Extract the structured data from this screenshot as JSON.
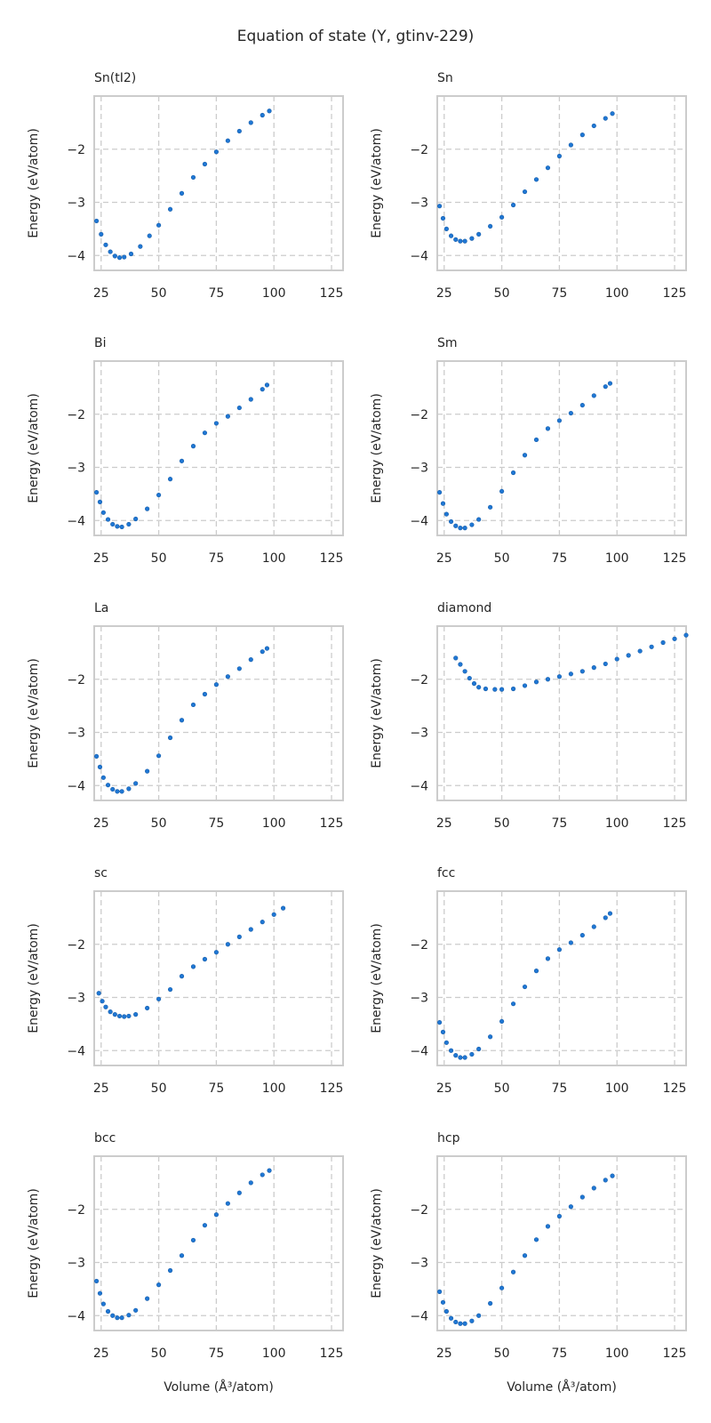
{
  "figure": {
    "title": "Equation of state (Y, gtinv-229)",
    "xlabel": "Volume (Å³/atom)",
    "ylabel": "Energy (eV/atom)"
  },
  "chart_data": [
    {
      "type": "scatter",
      "title": "Sn(tI2)",
      "xlim": [
        22,
        130
      ],
      "ylim": [
        -4.28,
        -1.0
      ],
      "xticks": [
        25,
        50,
        75,
        100,
        125
      ],
      "yticks": [
        -4,
        -3,
        -2
      ],
      "xlabel": "",
      "ylabel": "Energy (eV/atom)",
      "points": [
        [
          23,
          -3.35
        ],
        [
          25,
          -3.6
        ],
        [
          27,
          -3.8
        ],
        [
          29,
          -3.93
        ],
        [
          31,
          -4.01
        ],
        [
          33,
          -4.04
        ],
        [
          35,
          -4.03
        ],
        [
          38,
          -3.97
        ],
        [
          42,
          -3.83
        ],
        [
          46,
          -3.63
        ],
        [
          50,
          -3.43
        ],
        [
          55,
          -3.13
        ],
        [
          60,
          -2.83
        ],
        [
          65,
          -2.53
        ],
        [
          70,
          -2.28
        ],
        [
          75,
          -2.05
        ],
        [
          80,
          -1.84
        ],
        [
          85,
          -1.66
        ],
        [
          90,
          -1.5
        ],
        [
          95,
          -1.36
        ],
        [
          98,
          -1.28
        ]
      ]
    },
    {
      "type": "scatter",
      "title": "Sn",
      "xlim": [
        22,
        130
      ],
      "ylim": [
        -4.28,
        -1.0
      ],
      "xticks": [
        25,
        50,
        75,
        100,
        125
      ],
      "yticks": [
        -4,
        -3,
        -2
      ],
      "xlabel": "",
      "ylabel": "Energy (eV/atom)",
      "points": [
        [
          23,
          -3.07
        ],
        [
          24.5,
          -3.3
        ],
        [
          26,
          -3.5
        ],
        [
          28,
          -3.63
        ],
        [
          30,
          -3.7
        ],
        [
          32,
          -3.73
        ],
        [
          34,
          -3.73
        ],
        [
          37,
          -3.68
        ],
        [
          40,
          -3.6
        ],
        [
          45,
          -3.45
        ],
        [
          50,
          -3.28
        ],
        [
          55,
          -3.05
        ],
        [
          60,
          -2.8
        ],
        [
          65,
          -2.57
        ],
        [
          70,
          -2.35
        ],
        [
          75,
          -2.13
        ],
        [
          80,
          -1.92
        ],
        [
          85,
          -1.73
        ],
        [
          90,
          -1.56
        ],
        [
          95,
          -1.42
        ],
        [
          98,
          -1.33
        ]
      ]
    },
    {
      "type": "scatter",
      "title": "Bi",
      "xlim": [
        22,
        130
      ],
      "ylim": [
        -4.28,
        -1.0
      ],
      "xticks": [
        25,
        50,
        75,
        100,
        125
      ],
      "yticks": [
        -4,
        -3,
        -2
      ],
      "xlabel": "",
      "ylabel": "Energy (eV/atom)",
      "points": [
        [
          23,
          -3.47
        ],
        [
          24.5,
          -3.65
        ],
        [
          26,
          -3.85
        ],
        [
          28,
          -3.98
        ],
        [
          30,
          -4.07
        ],
        [
          32,
          -4.11
        ],
        [
          34,
          -4.12
        ],
        [
          37,
          -4.07
        ],
        [
          40,
          -3.97
        ],
        [
          45,
          -3.78
        ],
        [
          50,
          -3.52
        ],
        [
          55,
          -3.22
        ],
        [
          60,
          -2.88
        ],
        [
          65,
          -2.6
        ],
        [
          70,
          -2.35
        ],
        [
          75,
          -2.17
        ],
        [
          80,
          -2.04
        ],
        [
          85,
          -1.88
        ],
        [
          90,
          -1.72
        ],
        [
          95,
          -1.53
        ],
        [
          97,
          -1.45
        ]
      ]
    },
    {
      "type": "scatter",
      "title": "Sm",
      "xlim": [
        22,
        130
      ],
      "ylim": [
        -4.28,
        -1.0
      ],
      "xticks": [
        25,
        50,
        75,
        100,
        125
      ],
      "yticks": [
        -4,
        -3,
        -2
      ],
      "xlabel": "",
      "ylabel": "Energy (eV/atom)",
      "points": [
        [
          23,
          -3.47
        ],
        [
          24.5,
          -3.68
        ],
        [
          26,
          -3.88
        ],
        [
          28,
          -4.02
        ],
        [
          30,
          -4.1
        ],
        [
          32,
          -4.14
        ],
        [
          34,
          -4.14
        ],
        [
          37,
          -4.08
        ],
        [
          40,
          -3.98
        ],
        [
          45,
          -3.75
        ],
        [
          50,
          -3.45
        ],
        [
          55,
          -3.1
        ],
        [
          60,
          -2.77
        ],
        [
          65,
          -2.48
        ],
        [
          70,
          -2.27
        ],
        [
          75,
          -2.12
        ],
        [
          80,
          -1.98
        ],
        [
          85,
          -1.83
        ],
        [
          90,
          -1.65
        ],
        [
          95,
          -1.48
        ],
        [
          97,
          -1.42
        ]
      ]
    },
    {
      "type": "scatter",
      "title": "La",
      "xlim": [
        22,
        130
      ],
      "ylim": [
        -4.28,
        -1.0
      ],
      "xticks": [
        25,
        50,
        75,
        100,
        125
      ],
      "yticks": [
        -4,
        -3,
        -2
      ],
      "xlabel": "",
      "ylabel": "Energy (eV/atom)",
      "points": [
        [
          23,
          -3.45
        ],
        [
          24.5,
          -3.65
        ],
        [
          26,
          -3.85
        ],
        [
          28,
          -3.99
        ],
        [
          30,
          -4.07
        ],
        [
          32,
          -4.11
        ],
        [
          34,
          -4.11
        ],
        [
          37,
          -4.06
        ],
        [
          40,
          -3.96
        ],
        [
          45,
          -3.73
        ],
        [
          50,
          -3.44
        ],
        [
          55,
          -3.1
        ],
        [
          60,
          -2.77
        ],
        [
          65,
          -2.48
        ],
        [
          70,
          -2.28
        ],
        [
          75,
          -2.1
        ],
        [
          80,
          -1.95
        ],
        [
          85,
          -1.8
        ],
        [
          90,
          -1.63
        ],
        [
          95,
          -1.48
        ],
        [
          97,
          -1.42
        ]
      ]
    },
    {
      "type": "scatter",
      "title": "diamond",
      "xlim": [
        22,
        130
      ],
      "ylim": [
        -4.28,
        -1.0
      ],
      "xticks": [
        25,
        50,
        75,
        100,
        125
      ],
      "yticks": [
        -4,
        -3,
        -2
      ],
      "xlabel": "",
      "ylabel": "Energy (eV/atom)",
      "points": [
        [
          30,
          -1.6
        ],
        [
          32,
          -1.72
        ],
        [
          34,
          -1.85
        ],
        [
          36,
          -1.98
        ],
        [
          38,
          -2.08
        ],
        [
          40,
          -2.15
        ],
        [
          43,
          -2.18
        ],
        [
          47,
          -2.19
        ],
        [
          50,
          -2.19
        ],
        [
          55,
          -2.18
        ],
        [
          60,
          -2.12
        ],
        [
          65,
          -2.05
        ],
        [
          70,
          -2.0
        ],
        [
          75,
          -1.95
        ],
        [
          80,
          -1.9
        ],
        [
          85,
          -1.85
        ],
        [
          90,
          -1.78
        ],
        [
          95,
          -1.71
        ],
        [
          100,
          -1.62
        ],
        [
          105,
          -1.55
        ],
        [
          110,
          -1.47
        ],
        [
          115,
          -1.39
        ],
        [
          120,
          -1.31
        ],
        [
          125,
          -1.24
        ],
        [
          130,
          -1.17
        ]
      ]
    },
    {
      "type": "scatter",
      "title": "sc",
      "xlim": [
        22,
        130
      ],
      "ylim": [
        -4.28,
        -1.0
      ],
      "xticks": [
        25,
        50,
        75,
        100,
        125
      ],
      "yticks": [
        -4,
        -3,
        -2
      ],
      "xlabel": "",
      "ylabel": "Energy (eV/atom)",
      "points": [
        [
          24,
          -2.92
        ],
        [
          25.5,
          -3.07
        ],
        [
          27,
          -3.18
        ],
        [
          29,
          -3.27
        ],
        [
          31,
          -3.32
        ],
        [
          33,
          -3.35
        ],
        [
          35,
          -3.36
        ],
        [
          37,
          -3.35
        ],
        [
          40,
          -3.32
        ],
        [
          45,
          -3.2
        ],
        [
          50,
          -3.03
        ],
        [
          55,
          -2.85
        ],
        [
          60,
          -2.6
        ],
        [
          65,
          -2.42
        ],
        [
          70,
          -2.28
        ],
        [
          75,
          -2.15
        ],
        [
          80,
          -2.0
        ],
        [
          85,
          -1.86
        ],
        [
          90,
          -1.72
        ],
        [
          95,
          -1.58
        ],
        [
          100,
          -1.44
        ],
        [
          104,
          -1.32
        ]
      ]
    },
    {
      "type": "scatter",
      "title": "fcc",
      "xlim": [
        22,
        130
      ],
      "ylim": [
        -4.28,
        -1.0
      ],
      "xticks": [
        25,
        50,
        75,
        100,
        125
      ],
      "yticks": [
        -4,
        -3,
        -2
      ],
      "xlabel": "",
      "ylabel": "Energy (eV/atom)",
      "points": [
        [
          23,
          -3.47
        ],
        [
          24.5,
          -3.65
        ],
        [
          26,
          -3.85
        ],
        [
          28,
          -4.0
        ],
        [
          30,
          -4.09
        ],
        [
          32,
          -4.13
        ],
        [
          34,
          -4.13
        ],
        [
          37,
          -4.07
        ],
        [
          40,
          -3.97
        ],
        [
          45,
          -3.74
        ],
        [
          50,
          -3.45
        ],
        [
          55,
          -3.12
        ],
        [
          60,
          -2.8
        ],
        [
          65,
          -2.5
        ],
        [
          70,
          -2.27
        ],
        [
          75,
          -2.1
        ],
        [
          80,
          -1.97
        ],
        [
          85,
          -1.83
        ],
        [
          90,
          -1.67
        ],
        [
          95,
          -1.5
        ],
        [
          97,
          -1.42
        ]
      ]
    },
    {
      "type": "scatter",
      "title": "bcc",
      "xlim": [
        22,
        130
      ],
      "ylim": [
        -4.28,
        -1.0
      ],
      "xticks": [
        25,
        50,
        75,
        100,
        125
      ],
      "yticks": [
        -4,
        -3,
        -2
      ],
      "xlabel": "Volume (Å³/atom)",
      "ylabel": "Energy (eV/atom)",
      "points": [
        [
          23,
          -3.35
        ],
        [
          24.5,
          -3.58
        ],
        [
          26,
          -3.78
        ],
        [
          28,
          -3.92
        ],
        [
          30,
          -4.0
        ],
        [
          32,
          -4.04
        ],
        [
          34,
          -4.04
        ],
        [
          37,
          -3.99
        ],
        [
          40,
          -3.9
        ],
        [
          45,
          -3.68
        ],
        [
          50,
          -3.42
        ],
        [
          55,
          -3.15
        ],
        [
          60,
          -2.87
        ],
        [
          65,
          -2.58
        ],
        [
          70,
          -2.3
        ],
        [
          75,
          -2.1
        ],
        [
          80,
          -1.89
        ],
        [
          85,
          -1.69
        ],
        [
          90,
          -1.5
        ],
        [
          95,
          -1.35
        ],
        [
          98,
          -1.27
        ]
      ]
    },
    {
      "type": "scatter",
      "title": "hcp",
      "xlim": [
        22,
        130
      ],
      "ylim": [
        -4.28,
        -1.0
      ],
      "xticks": [
        25,
        50,
        75,
        100,
        125
      ],
      "yticks": [
        -4,
        -3,
        -2
      ],
      "xlabel": "Volume (Å³/atom)",
      "ylabel": "Energy (eV/atom)",
      "points": [
        [
          23,
          -3.55
        ],
        [
          24.5,
          -3.75
        ],
        [
          26,
          -3.92
        ],
        [
          28,
          -4.05
        ],
        [
          30,
          -4.12
        ],
        [
          32,
          -4.15
        ],
        [
          34,
          -4.15
        ],
        [
          37,
          -4.1
        ],
        [
          40,
          -4.0
        ],
        [
          45,
          -3.77
        ],
        [
          50,
          -3.48
        ],
        [
          55,
          -3.18
        ],
        [
          60,
          -2.87
        ],
        [
          65,
          -2.57
        ],
        [
          70,
          -2.32
        ],
        [
          75,
          -2.13
        ],
        [
          80,
          -1.95
        ],
        [
          85,
          -1.77
        ],
        [
          90,
          -1.6
        ],
        [
          95,
          -1.45
        ],
        [
          98,
          -1.37
        ]
      ]
    }
  ]
}
